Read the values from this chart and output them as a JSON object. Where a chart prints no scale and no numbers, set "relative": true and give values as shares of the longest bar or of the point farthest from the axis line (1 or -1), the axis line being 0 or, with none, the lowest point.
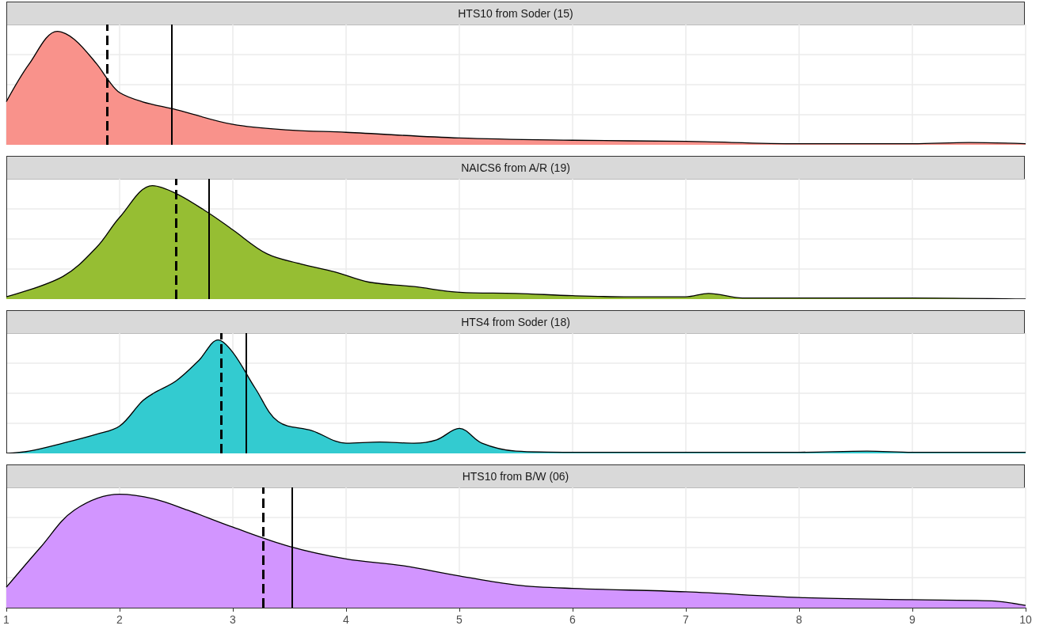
{
  "chart_data": [
    {
      "type": "area",
      "title": "HTS10 from Soder (15)",
      "relative": true,
      "xlim": [
        1,
        10
      ],
      "xticks": [
        1,
        2,
        3,
        4,
        5,
        6,
        7,
        8,
        9,
        10
      ],
      "grid": true,
      "tick_labels": false,
      "series": [
        {
          "color": "#f9928b",
          "x": [
            1.0,
            1.2,
            1.45,
            1.6,
            1.8,
            1.9,
            2.0,
            2.2,
            2.5,
            3.0,
            3.5,
            4.0,
            5.0,
            6.0,
            7.0,
            8.0,
            9.0,
            9.5,
            10.0
          ],
          "values": [
            0.38,
            0.71,
            1.0,
            0.93,
            0.71,
            0.57,
            0.46,
            0.38,
            0.31,
            0.18,
            0.13,
            0.11,
            0.06,
            0.04,
            0.03,
            0.01,
            0.01,
            0.02,
            0.01
          ]
        }
      ],
      "ref_lines": [
        {
          "axis": "x",
          "value": 1.89,
          "line_style": "dashed",
          "color": "#000000"
        },
        {
          "axis": "x",
          "value": 2.46,
          "line_style": "solid",
          "color": "#000000"
        }
      ]
    },
    {
      "type": "area",
      "title": "NAICS6 from A/R (19)",
      "relative": true,
      "xlim": [
        1,
        10
      ],
      "xticks": [
        1,
        2,
        3,
        4,
        5,
        6,
        7,
        8,
        9,
        10
      ],
      "grid": true,
      "tick_labels": false,
      "series": [
        {
          "color": "#96be33",
          "x": [
            1.0,
            1.5,
            1.8,
            2.0,
            2.29,
            2.5,
            2.8,
            3.0,
            3.3,
            3.6,
            3.9,
            4.2,
            4.6,
            5.0,
            5.5,
            6.0,
            6.5,
            7.0,
            7.2,
            7.5,
            8.0,
            8.3,
            9.0,
            10.0
          ],
          "values": [
            0.02,
            0.2,
            0.46,
            0.72,
            1.0,
            0.93,
            0.75,
            0.61,
            0.4,
            0.31,
            0.24,
            0.15,
            0.11,
            0.06,
            0.05,
            0.03,
            0.02,
            0.02,
            0.05,
            0.01,
            0.01,
            0.01,
            0.01,
            0
          ]
        }
      ],
      "ref_lines": [
        {
          "axis": "x",
          "value": 2.5,
          "line_style": "dashed",
          "color": "#000000"
        },
        {
          "axis": "x",
          "value": 2.79,
          "line_style": "solid",
          "color": "#000000"
        }
      ]
    },
    {
      "type": "area",
      "title": "HTS4 from Soder (18)",
      "relative": true,
      "xlim": [
        1,
        10
      ],
      "xticks": [
        1,
        2,
        3,
        4,
        5,
        6,
        7,
        8,
        9,
        10
      ],
      "grid": true,
      "tick_labels": false,
      "series": [
        {
          "color": "#33cbd0",
          "x": [
            1.0,
            1.2,
            1.5,
            1.8,
            2.0,
            2.2,
            2.3,
            2.5,
            2.7,
            2.87,
            3.0,
            3.2,
            3.4,
            3.7,
            4.0,
            4.3,
            4.6,
            4.8,
            5.0,
            5.2,
            5.5,
            6.0,
            6.5,
            7.0,
            8.0,
            8.6,
            9.0,
            10.0
          ],
          "values": [
            0,
            0.02,
            0.09,
            0.17,
            0.24,
            0.46,
            0.53,
            0.64,
            0.82,
            1.0,
            0.89,
            0.57,
            0.28,
            0.2,
            0.09,
            0.1,
            0.09,
            0.12,
            0.22,
            0.09,
            0.02,
            0.01,
            0.01,
            0.01,
            0.01,
            0.02,
            0.01,
            0.01
          ]
        }
      ],
      "ref_lines": [
        {
          "axis": "x",
          "value": 2.9,
          "line_style": "dashed",
          "color": "#000000"
        },
        {
          "axis": "x",
          "value": 3.12,
          "line_style": "solid",
          "color": "#000000"
        }
      ]
    },
    {
      "type": "area",
      "title": "HTS10 from B/W (06)",
      "relative": true,
      "xlim": [
        1,
        10
      ],
      "xticks": [
        1,
        2,
        3,
        4,
        5,
        6,
        7,
        8,
        9,
        10
      ],
      "grid": true,
      "tick_labels": "x",
      "series": [
        {
          "color": "#d295ff",
          "x": [
            1.0,
            1.3,
            1.6,
            2.0,
            2.3,
            2.6,
            3.0,
            3.5,
            4.0,
            4.5,
            5.0,
            5.5,
            6.0,
            7.0,
            8.0,
            9.0,
            9.7,
            10.0
          ],
          "values": [
            0.18,
            0.53,
            0.86,
            1.0,
            0.96,
            0.86,
            0.71,
            0.54,
            0.43,
            0.37,
            0.28,
            0.2,
            0.17,
            0.14,
            0.09,
            0.07,
            0.06,
            0.02
          ]
        }
      ],
      "ref_lines": [
        {
          "axis": "x",
          "value": 3.27,
          "line_style": "dashed",
          "color": "#000000"
        },
        {
          "axis": "x",
          "value": 3.52,
          "line_style": "solid",
          "color": "#000000"
        }
      ]
    }
  ]
}
